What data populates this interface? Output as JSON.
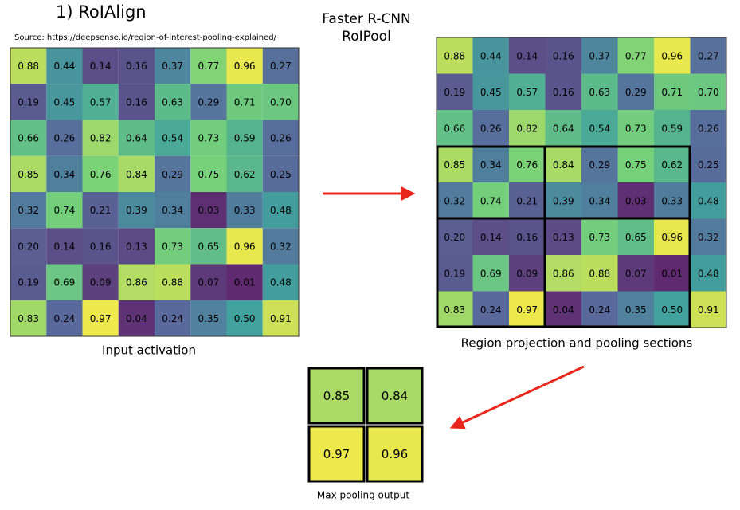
{
  "header": {
    "title": "1) RoIAlign",
    "source": "Source: https://deepsense.io/region-of-interest-pooling-explained/",
    "method_line1": "Faster R-CNN",
    "method_line2": "RoIPool"
  },
  "input_grid": {
    "caption": "Input activation",
    "rows": [
      [
        "0.88",
        "0.44",
        "0.14",
        "0.16",
        "0.37",
        "0.77",
        "0.96",
        "0.27"
      ],
      [
        "0.19",
        "0.45",
        "0.57",
        "0.16",
        "0.63",
        "0.29",
        "0.71",
        "0.70"
      ],
      [
        "0.66",
        "0.26",
        "0.82",
        "0.64",
        "0.54",
        "0.73",
        "0.59",
        "0.26"
      ],
      [
        "0.85",
        "0.34",
        "0.76",
        "0.84",
        "0.29",
        "0.75",
        "0.62",
        "0.25"
      ],
      [
        "0.32",
        "0.74",
        "0.21",
        "0.39",
        "0.34",
        "0.03",
        "0.33",
        "0.48"
      ],
      [
        "0.20",
        "0.14",
        "0.16",
        "0.13",
        "0.73",
        "0.65",
        "0.96",
        "0.32"
      ],
      [
        "0.19",
        "0.69",
        "0.09",
        "0.86",
        "0.88",
        "0.07",
        "0.01",
        "0.48"
      ],
      [
        "0.83",
        "0.24",
        "0.97",
        "0.04",
        "0.24",
        "0.35",
        "0.50",
        "0.91"
      ]
    ]
  },
  "region_grid": {
    "caption": "Region projection and pooling sections",
    "rows": [
      [
        "0.88",
        "0.44",
        "0.14",
        "0.16",
        "0.37",
        "0.77",
        "0.96",
        "0.27"
      ],
      [
        "0.19",
        "0.45",
        "0.57",
        "0.16",
        "0.63",
        "0.29",
        "0.71",
        "0.70"
      ],
      [
        "0.66",
        "0.26",
        "0.82",
        "0.64",
        "0.54",
        "0.73",
        "0.59",
        "0.26"
      ],
      [
        "0.85",
        "0.34",
        "0.76",
        "0.84",
        "0.29",
        "0.75",
        "0.62",
        "0.25"
      ],
      [
        "0.32",
        "0.74",
        "0.21",
        "0.39",
        "0.34",
        "0.03",
        "0.33",
        "0.48"
      ],
      [
        "0.20",
        "0.14",
        "0.16",
        "0.13",
        "0.73",
        "0.65",
        "0.96",
        "0.32"
      ],
      [
        "0.19",
        "0.69",
        "0.09",
        "0.86",
        "0.88",
        "0.07",
        "0.01",
        "0.48"
      ],
      [
        "0.83",
        "0.24",
        "0.97",
        "0.04",
        "0.24",
        "0.35",
        "0.50",
        "0.91"
      ]
    ]
  },
  "output_grid": {
    "caption": "Max pooling output",
    "rows": [
      [
        "0.85",
        "0.84"
      ],
      [
        "0.97",
        "0.96"
      ]
    ]
  }
}
